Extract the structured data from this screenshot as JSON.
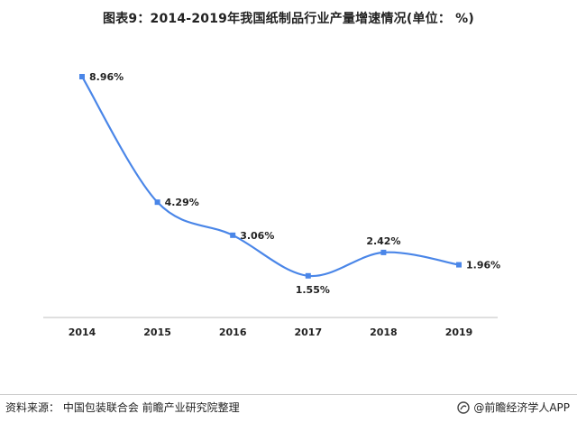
{
  "title": "图表9：2014-2019年我国纸制品行业产量增速情况(单位： %)",
  "source": "资料来源：  中国包装联合会  前瞻产业研究院整理",
  "brand": "@前瞻经济学人APP",
  "colors": {
    "line": "#4a86e8",
    "axis": "#bfbfbf",
    "text": "#222222"
  },
  "chart_data": {
    "type": "line",
    "categories": [
      "2014",
      "2015",
      "2016",
      "2017",
      "2018",
      "2019"
    ],
    "series": [
      {
        "values": [
          8.96,
          4.29,
          3.06,
          1.55,
          2.42,
          1.96
        ]
      }
    ],
    "data_labels": [
      "8.96%",
      "4.29%",
      "3.06%",
      "1.55%",
      "2.42%",
      "1.96%"
    ],
    "ylim": [
      0,
      10
    ],
    "grid": false,
    "smooth": true
  }
}
